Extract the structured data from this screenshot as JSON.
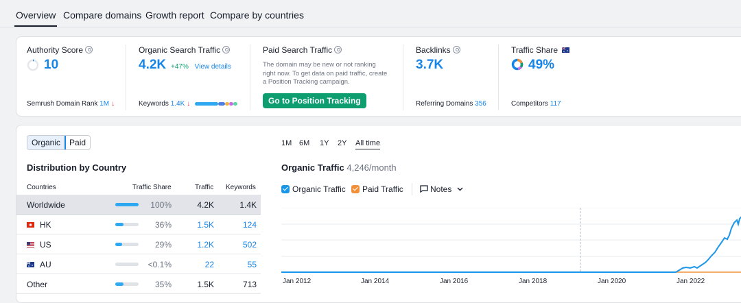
{
  "tabs": [
    {
      "label": "Overview",
      "active": true
    },
    {
      "label": "Compare domains",
      "active": false
    },
    {
      "label": "Growth report",
      "active": false
    },
    {
      "label": "Compare by countries",
      "active": false
    }
  ],
  "summary": {
    "authority": {
      "title": "Authority Score",
      "value": "10",
      "rank_label": "Semrush Domain Rank",
      "rank_value": "1M",
      "rank_arrow": "↓"
    },
    "organic": {
      "title": "Organic Search Traffic",
      "value": "4.2K",
      "change": "+47%",
      "link": "View details",
      "keywords_label": "Keywords",
      "keywords_value": "1.4K",
      "keywords_arrow": "↓"
    },
    "paid": {
      "title": "Paid Search Traffic",
      "description": "The domain may be new or not ranking right now. To get data on paid traffic, create a Position Tracking campaign.",
      "button": "Go to Position Tracking"
    },
    "backlinks": {
      "title": "Backlinks",
      "value": "3.7K",
      "referring_label": "Referring Domains",
      "referring_value": "356"
    },
    "traffic_share": {
      "title": "Traffic Share",
      "value": "49%",
      "competitors_label": "Competitors",
      "competitors_value": "117",
      "flag": "AU"
    }
  },
  "distribution": {
    "toggle": [
      {
        "label": "Organic",
        "active": true
      },
      {
        "label": "Paid",
        "active": false
      }
    ],
    "title": "Distribution by Country",
    "headers": {
      "countries": "Countries",
      "share": "Traffic Share",
      "traffic": "Traffic",
      "keywords": "Keywords"
    },
    "rows": [
      {
        "country": "Worldwide",
        "flag": "",
        "share": "100%",
        "share_fraction": 1.0,
        "traffic": "4.2K",
        "keywords": "1.4K",
        "linked": false
      },
      {
        "country": "HK",
        "flag": "HK",
        "share": "36%",
        "share_fraction": 0.36,
        "traffic": "1.5K",
        "keywords": "124",
        "linked": true
      },
      {
        "country": "US",
        "flag": "US",
        "share": "29%",
        "share_fraction": 0.29,
        "traffic": "1.2K",
        "keywords": "502",
        "linked": true
      },
      {
        "country": "AU",
        "flag": "AU",
        "share": "<0.1%",
        "share_fraction": 0.0,
        "traffic": "22",
        "keywords": "55",
        "linked": true
      },
      {
        "country": "Other",
        "flag": "",
        "share": "35%",
        "share_fraction": 0.35,
        "traffic": "1.5K",
        "keywords": "713",
        "linked": false
      }
    ]
  },
  "traffic_chart": {
    "ranges": [
      {
        "label": "1M",
        "active": false
      },
      {
        "label": "6M",
        "active": false
      },
      {
        "label": "1Y",
        "active": false
      },
      {
        "label": "2Y",
        "active": false
      },
      {
        "label": "All time",
        "active": true
      }
    ],
    "title": "Organic Traffic",
    "subtitle": "4,246/month",
    "legend": [
      {
        "label": "Organic Traffic",
        "color": "#1c96e8"
      },
      {
        "label": "Paid Traffic",
        "color": "#f0913a"
      }
    ],
    "notes_label": "Notes",
    "x_labels": [
      "Jan 2012",
      "Jan 2014",
      "Jan 2016",
      "Jan 2018",
      "Jan 2020",
      "Jan 2022"
    ]
  },
  "colors": {
    "accent": "#1585e8",
    "green": "#0d9d6f",
    "organic": "#1c96e8",
    "paid": "#f0913a"
  }
}
